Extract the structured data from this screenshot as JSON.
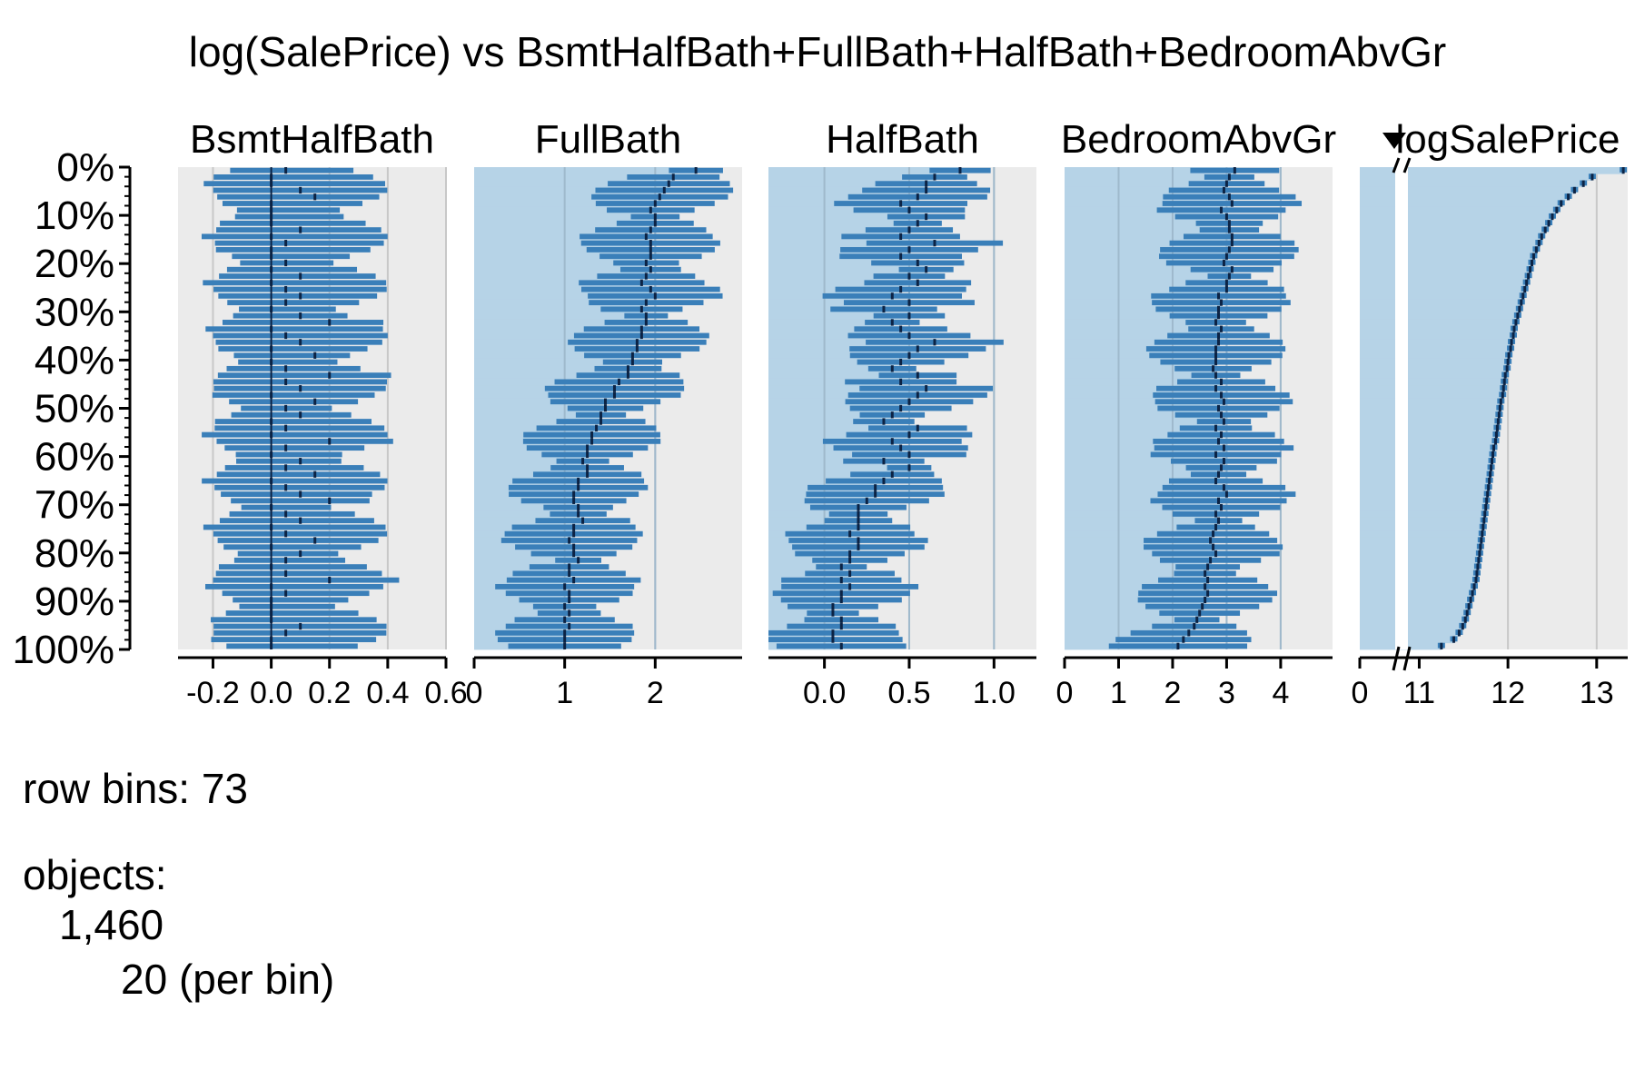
{
  "chart_data": {
    "type": "table",
    "title": "log(SalePrice) vs BsmtHalfBath+FullBath+HalfBath+BedroomAbvGr",
    "row_axis": {
      "tick_labels": [
        "0%",
        "10%",
        "20%",
        "30%",
        "40%",
        "50%",
        "60%",
        "70%",
        "80%",
        "90%",
        "100%"
      ]
    },
    "panels": [
      {
        "name": "BsmtHalfBath",
        "xlim": [
          -0.32,
          0.6
        ],
        "ticks": [
          -0.2,
          0.0,
          0.2,
          0.4,
          0.6
        ],
        "tick_labels": [
          "-0.2",
          "0.0",
          "0.2",
          "0.4",
          "0.6"
        ],
        "shaded": false,
        "grid": [
          -0.2,
          0.2,
          0.4,
          0.6
        ],
        "axis_line": 0.0
      },
      {
        "name": "FullBath",
        "xlim": [
          0,
          2.96
        ],
        "ticks": [
          0,
          1,
          2
        ],
        "tick_labels": [
          "0",
          "1",
          "2"
        ],
        "shaded": true,
        "grid": [
          1,
          2
        ],
        "shade_from": 0
      },
      {
        "name": "HalfBath",
        "xlim": [
          -0.33,
          1.25
        ],
        "ticks": [
          0.0,
          0.5,
          1.0
        ],
        "tick_labels": [
          "0.0",
          "0.5",
          "1.0"
        ],
        "shaded": true,
        "grid": [
          0.0,
          0.5,
          1.0
        ],
        "shade_from": -0.33
      },
      {
        "name": "BedroomAbvGr",
        "xlim": [
          0,
          4.96
        ],
        "ticks": [
          0,
          1,
          2,
          3,
          4
        ],
        "tick_labels": [
          "0",
          "1",
          "2",
          "3",
          "4"
        ],
        "shaded": true,
        "grid": [
          1,
          2,
          3,
          4
        ],
        "shade_from": 0
      },
      {
        "name": "logSalePrice",
        "sorted_desc": true,
        "xlim": [
          10.33,
          13.35
        ],
        "ticks": [
          0,
          11,
          12,
          13
        ],
        "tick_labels": [
          "0",
          "11",
          "12",
          "13"
        ],
        "shaded": true,
        "grid": [
          11,
          12,
          13
        ],
        "axis_break": true
      }
    ],
    "bin_means": {
      "BsmtHalfBath": [
        0.05,
        0.0,
        0.0,
        0.1,
        0.15,
        0.0,
        0.0,
        0.0,
        0.0,
        0.1,
        0.0,
        0.05,
        0.0,
        0.0,
        0.05,
        0.0,
        0.1,
        0.0,
        0.05,
        0.1,
        0.05,
        0.0,
        0.1,
        0.2,
        0.0,
        0.05,
        0.1,
        0.0,
        0.15,
        0.0,
        0.05,
        0.2,
        0.05,
        0.1,
        0.0,
        0.15,
        0.05,
        0.1,
        0.0,
        0.05,
        0.0,
        0.2,
        0.05,
        0.0,
        0.1,
        0.05,
        0.15,
        0.0,
        0.05,
        0.1,
        0.2,
        0.0,
        0.05,
        0.1,
        0.0,
        0.05,
        0.15,
        0.0,
        0.1,
        0.05,
        0.0,
        0.05,
        0.2,
        0.0,
        0.05,
        0.0,
        0.0,
        0.0,
        0.0,
        0.1,
        0.05,
        0.0,
        0.0
      ],
      "FullBath": [
        2.45,
        2.2,
        2.15,
        2.1,
        2.05,
        2.0,
        1.95,
        2.0,
        2.0,
        1.95,
        1.9,
        1.95,
        1.95,
        1.95,
        1.9,
        1.95,
        1.9,
        1.85,
        1.95,
        2.0,
        1.9,
        1.85,
        1.9,
        1.9,
        1.85,
        1.85,
        1.8,
        1.8,
        1.75,
        1.75,
        1.7,
        1.7,
        1.6,
        1.55,
        1.55,
        1.45,
        1.45,
        1.4,
        1.4,
        1.35,
        1.3,
        1.3,
        1.25,
        1.25,
        1.2,
        1.25,
        1.25,
        1.15,
        1.15,
        1.1,
        1.1,
        1.15,
        1.15,
        1.2,
        1.1,
        1.1,
        1.05,
        1.1,
        1.1,
        1.15,
        1.05,
        1.05,
        1.1,
        1.0,
        1.05,
        1.05,
        1.0,
        1.05,
        1.0,
        1.05,
        1.0,
        1.0,
        1.0
      ],
      "HalfBath": [
        0.8,
        0.65,
        0.6,
        0.6,
        0.55,
        0.45,
        0.5,
        0.6,
        0.55,
        0.5,
        0.45,
        0.65,
        0.5,
        0.45,
        0.55,
        0.6,
        0.5,
        0.55,
        0.45,
        0.4,
        0.5,
        0.35,
        0.5,
        0.4,
        0.45,
        0.5,
        0.65,
        0.55,
        0.5,
        0.45,
        0.4,
        0.55,
        0.45,
        0.6,
        0.55,
        0.5,
        0.45,
        0.4,
        0.35,
        0.55,
        0.5,
        0.4,
        0.45,
        0.5,
        0.35,
        0.5,
        0.4,
        0.35,
        0.3,
        0.3,
        0.25,
        0.2,
        0.2,
        0.2,
        0.2,
        0.15,
        0.2,
        0.2,
        0.15,
        0.15,
        0.1,
        0.15,
        0.1,
        0.15,
        0.1,
        0.1,
        0.05,
        0.05,
        0.1,
        0.1,
        0.05,
        0.05,
        0.1
      ],
      "BedroomAbvGr": [
        3.15,
        3.05,
        3.0,
        2.95,
        3.05,
        3.1,
        2.9,
        3.0,
        3.05,
        3.05,
        3.1,
        3.1,
        3.05,
        3.0,
        2.95,
        3.1,
        3.05,
        3.0,
        3.0,
        2.85,
        2.9,
        2.85,
        2.85,
        2.8,
        2.9,
        2.85,
        2.85,
        2.8,
        2.8,
        2.8,
        2.75,
        2.8,
        2.9,
        2.8,
        2.9,
        2.95,
        2.85,
        2.9,
        2.95,
        2.8,
        2.9,
        2.85,
        2.95,
        2.8,
        2.95,
        2.9,
        2.85,
        2.8,
        2.95,
        3.0,
        2.85,
        2.9,
        2.8,
        2.85,
        2.8,
        2.75,
        2.7,
        2.75,
        2.8,
        2.7,
        2.65,
        2.6,
        2.65,
        2.6,
        2.65,
        2.6,
        2.55,
        2.5,
        2.45,
        2.4,
        2.3,
        2.2,
        2.1
      ],
      "logSalePrice": [
        13.3,
        12.95,
        12.85,
        12.75,
        12.68,
        12.6,
        12.55,
        12.5,
        12.46,
        12.42,
        12.38,
        12.35,
        12.32,
        12.29,
        12.27,
        12.25,
        12.23,
        12.21,
        12.19,
        12.17,
        12.15,
        12.13,
        12.11,
        12.09,
        12.07,
        12.06,
        12.04,
        12.03,
        12.01,
        12.0,
        11.99,
        11.97,
        11.96,
        11.95,
        11.94,
        11.92,
        11.91,
        11.9,
        11.89,
        11.88,
        11.87,
        11.86,
        11.84,
        11.83,
        11.82,
        11.81,
        11.8,
        11.79,
        11.78,
        11.77,
        11.76,
        11.75,
        11.74,
        11.73,
        11.72,
        11.71,
        11.7,
        11.69,
        11.68,
        11.67,
        11.66,
        11.65,
        11.64,
        11.62,
        11.6,
        11.58,
        11.56,
        11.54,
        11.52,
        11.49,
        11.45,
        11.39,
        11.25
      ]
    },
    "grid": true
  },
  "footer": {
    "row_bins": "row bins: 73",
    "objects_label": "objects:",
    "total": "1,460",
    "per_bin": "20 (per bin)"
  },
  "colors": {
    "bar": "#3a7fb9",
    "mean_tick": "#0c2344",
    "panel_bg": "#ebebeb",
    "panel_shade": "#b6d3e7",
    "grid": "#c8c8c8"
  }
}
